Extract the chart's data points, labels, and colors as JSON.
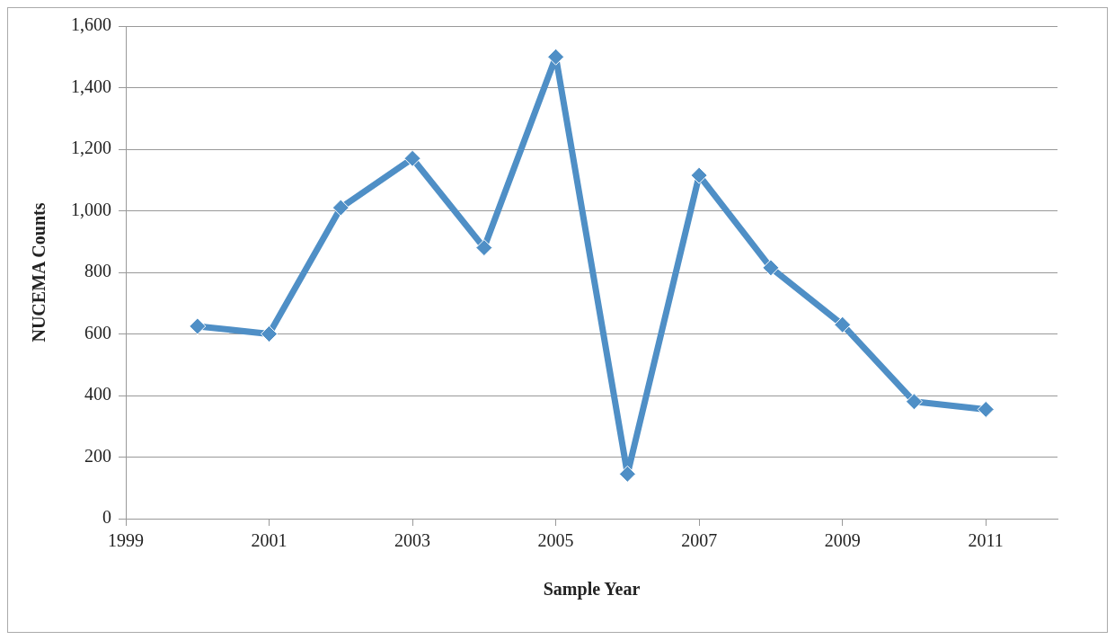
{
  "chart_data": {
    "type": "line",
    "xlabel": "Sample Year",
    "ylabel": "NUCEMA Counts",
    "x": [
      2000,
      2001,
      2002,
      2003,
      2004,
      2005,
      2006,
      2007,
      2008,
      2009,
      2010,
      2011
    ],
    "series": [
      {
        "color": "#4f8fc6",
        "values": [
          625,
          600,
          1010,
          1170,
          880,
          1500,
          145,
          1115,
          815,
          630,
          380,
          355
        ]
      }
    ],
    "xlim": [
      1999,
      2012
    ],
    "xticks": [
      {
        "value": 1999,
        "label": "1999"
      },
      {
        "value": 2001,
        "label": "2001"
      },
      {
        "value": 2003,
        "label": "2003"
      },
      {
        "value": 2005,
        "label": "2005"
      },
      {
        "value": 2007,
        "label": "2007"
      },
      {
        "value": 2009,
        "label": "2009"
      },
      {
        "value": 2011,
        "label": "2011"
      }
    ],
    "ylim": [
      0,
      1600
    ],
    "yticks": [
      {
        "value": 0,
        "label": "0"
      },
      {
        "value": 200,
        "label": "200"
      },
      {
        "value": 400,
        "label": "400"
      },
      {
        "value": 600,
        "label": "600"
      },
      {
        "value": 800,
        "label": "800"
      },
      {
        "value": 1000,
        "label": "1,000"
      },
      {
        "value": 1200,
        "label": "1,200"
      },
      {
        "value": 1400,
        "label": "1,400"
      },
      {
        "value": 1600,
        "label": "1,600"
      }
    ],
    "grid": "y",
    "legend": false,
    "marker": "diamond",
    "line_style": "solid"
  }
}
